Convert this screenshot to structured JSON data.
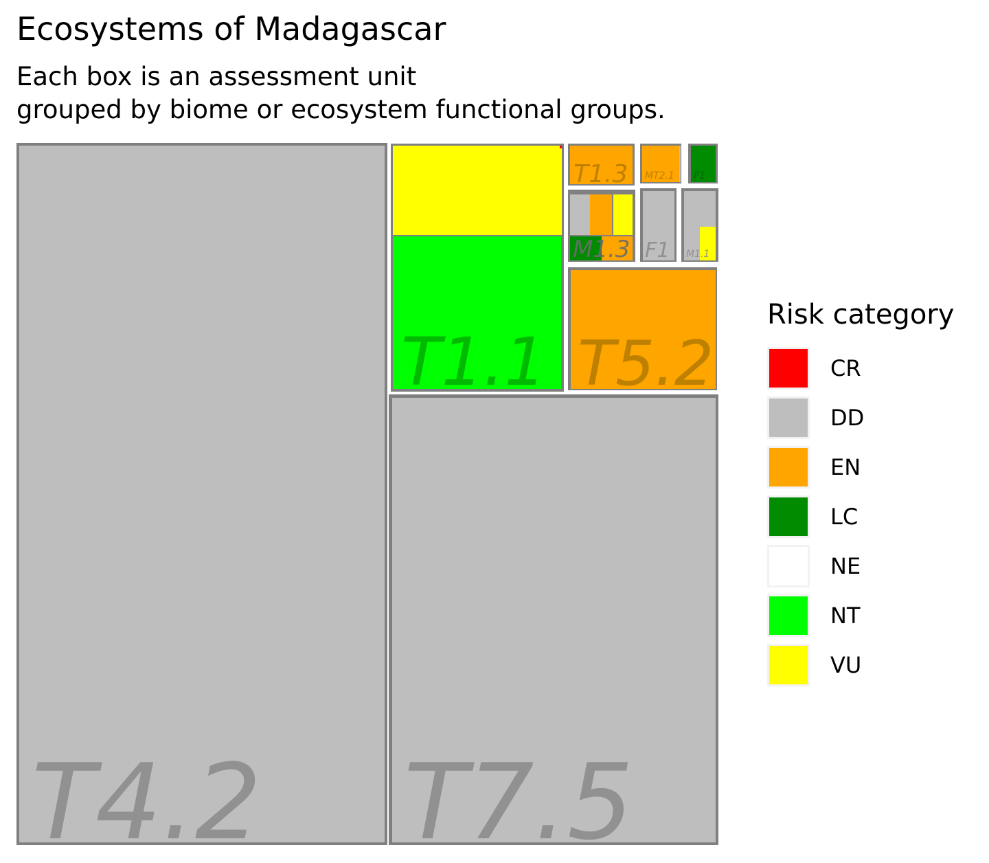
{
  "chart_data": {
    "type": "treemap",
    "title": "Ecosystems of Madagascar",
    "subtitle_lines": [
      "Each box is an assessment unit",
      "grouped by biome or ecosystem functional groups."
    ],
    "legend": {
      "title": "Risk category",
      "placement": "right",
      "items": [
        {
          "category": "CR",
          "color": "#ff0000"
        },
        {
          "category": "DD",
          "color": "#bebebe"
        },
        {
          "category": "EN",
          "color": "#ffa500"
        },
        {
          "category": "LC",
          "color": "#008b00"
        },
        {
          "category": "NE",
          "color": "#ffffff"
        },
        {
          "category": "NT",
          "color": "#00ff00"
        },
        {
          "category": "VU",
          "color": "#ffff00"
        }
      ]
    },
    "groups": [
      {
        "name": "T4.2",
        "units": [
          {
            "category": "DD",
            "relative_area": 0.5278
          }
        ]
      },
      {
        "name": "T7.5",
        "units": [
          {
            "category": "DD",
            "relative_area": 0.2995
          }
        ]
      },
      {
        "name": "T1.1",
        "units": [
          {
            "category": "VU",
            "relative_area": 0.0304
          },
          {
            "category": "NT",
            "relative_area": 0.053
          },
          {
            "category": "CR",
            "relative_area": 0.0002
          },
          {
            "category": "VU",
            "relative_area": 0.0008
          }
        ]
      },
      {
        "name": "T5.2",
        "units": [
          {
            "category": "EN",
            "relative_area": 0.035
          }
        ]
      },
      {
        "name": "T1.3",
        "units": [
          {
            "category": "EN",
            "relative_area": 0.0047
          }
        ]
      },
      {
        "name": "MT2.1",
        "units": [
          {
            "category": "EN",
            "relative_area": 0.0028
          },
          {
            "category": "DD",
            "relative_area": 0.0001
          }
        ]
      },
      {
        "name": "F1",
        "units": [
          {
            "category": "DD",
            "relative_area": 0.0044
          }
        ]
      },
      {
        "name": "M1.3",
        "units": [
          {
            "category": "DD",
            "relative_area": 0.001
          },
          {
            "category": "EN",
            "relative_area": 0.001
          },
          {
            "category": "VU",
            "relative_area": 0.001
          },
          {
            "category": "LC",
            "relative_area": 0.0014
          },
          {
            "category": "EN",
            "relative_area": 0.0016
          }
        ]
      },
      {
        "name": "M1.1",
        "units": [
          {
            "category": "DD",
            "relative_area": 0.0035
          },
          {
            "category": "VU",
            "relative_area": 0.0009
          }
        ]
      },
      {
        "name": "F1",
        "units": [
          {
            "category": "LC",
            "relative_area": 0.0017
          }
        ]
      }
    ]
  }
}
